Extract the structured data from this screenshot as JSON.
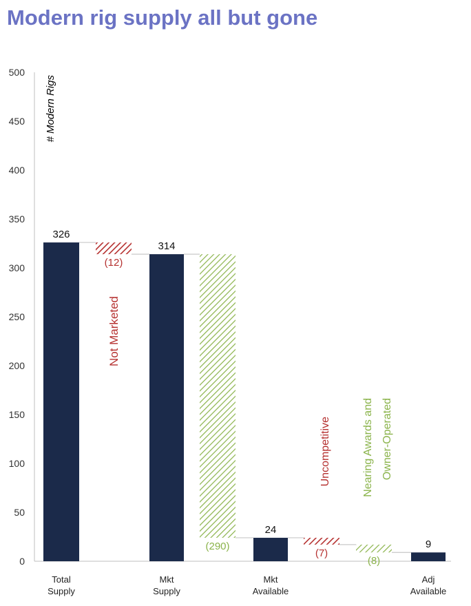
{
  "title": "Modern rig supply all but gone",
  "chart_data": {
    "type": "bar",
    "subtype": "waterfall",
    "title": "Modern rig supply all but gone",
    "ylabel": "# Modern Rigs",
    "xlabel": "",
    "ylim": [
      0,
      500
    ],
    "yticks": [
      0,
      50,
      100,
      150,
      200,
      250,
      300,
      350,
      400,
      450,
      500
    ],
    "grid": false,
    "colors": {
      "total": "#1b2a4a",
      "red": "#b5302f",
      "green": "#8ab34a",
      "title": "#6b73c4",
      "connector": "#c8c8c8"
    },
    "steps": [
      {
        "kind": "total",
        "value": 326,
        "label": "326",
        "category": "Total Supply",
        "category_lines": [
          "Total",
          "Supply"
        ]
      },
      {
        "kind": "decrease",
        "value": -12,
        "from": 326,
        "to": 314,
        "label": "(12)",
        "style": "red",
        "annotation": "Not Marketed"
      },
      {
        "kind": "total",
        "value": 314,
        "label": "314",
        "category": "Mkt Supply",
        "category_lines": [
          "Mkt",
          "Supply"
        ]
      },
      {
        "kind": "decrease",
        "value": -290,
        "from": 314,
        "to": 24,
        "label": "(290)",
        "style": "green",
        "annotation": ""
      },
      {
        "kind": "total",
        "value": 24,
        "label": "24",
        "category": "Mkt Available",
        "category_lines": [
          "Mkt",
          "Available"
        ]
      },
      {
        "kind": "decrease",
        "value": -7,
        "from": 24,
        "to": 17,
        "label": "(7)",
        "style": "red",
        "annotation": "Uncompetitive"
      },
      {
        "kind": "decrease",
        "value": -8,
        "from": 17,
        "to": 9,
        "label": "(8)",
        "style": "green",
        "annotation": "Nearing Awards and Owner-Operated",
        "annotation_lines": [
          "Nearing Awards and",
          "Owner-Operated"
        ]
      },
      {
        "kind": "total",
        "value": 9,
        "label": "9",
        "category": "Adj Available",
        "category_lines": [
          "Adj",
          "Available"
        ]
      }
    ]
  }
}
